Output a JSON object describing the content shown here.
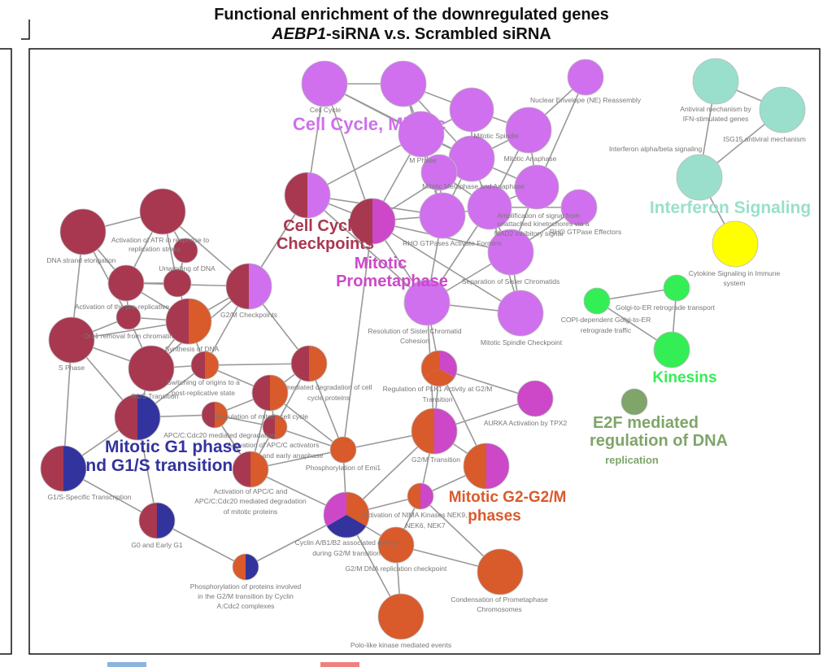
{
  "title": {
    "line1": "Functional enrichment of the downregulated genes",
    "line2_gene": "AEBP1",
    "line2_rest": "-siRNA v.s. Scrambled siRNA"
  },
  "colors": {
    "cell_cycle_mitotic": "#d070ee",
    "cell_cycle_checkpoints": "#a83850",
    "mitotic_prometaphase": "#cc48c8",
    "g1s": "#33339e",
    "g2m": "#d95a2b",
    "interferon": "#99dfcc",
    "cytokine": "#ffff00",
    "kinesins": "#33ee55",
    "e2f": "#7fa56a",
    "edge": "#999999",
    "legend_blue": "#8ab4dc",
    "legend_red": "#f08080"
  },
  "groups": [
    {
      "text": "Cell Cycle, Mitotic",
      "color": "#d070ee"
    },
    {
      "text": "Cell Cycle",
      "color": "#a83850"
    },
    {
      "text": "Checkpoints",
      "color": "#a83850"
    },
    {
      "text": "Mitotic",
      "color": "#cc48c8"
    },
    {
      "text": "Prometaphase",
      "color": "#cc48c8"
    },
    {
      "text": "Interferon Signaling",
      "color": "#99dfcc"
    },
    {
      "text": "Kinesins",
      "color": "#33ee55"
    },
    {
      "text": "E2F mediated",
      "color": "#7fa56a"
    },
    {
      "text": "regulation of DNA",
      "color": "#7fa56a"
    },
    {
      "text": "replication",
      "color": "#7fa56a"
    },
    {
      "text": "Mitotic G1 phase",
      "color": "#33339e"
    },
    {
      "text": "and G1/S transition",
      "color": "#33339e"
    },
    {
      "text": "Mitotic G2-G2/M",
      "color": "#d95a2b"
    },
    {
      "text": "phases",
      "color": "#d95a2b"
    }
  ],
  "nodes": [
    {
      "id": "n1",
      "c": [
        "cell_cycle_mitotic"
      ]
    },
    {
      "id": "n2",
      "c": [
        "cell_cycle_mitotic"
      ]
    },
    {
      "id": "n3",
      "c": [
        "cell_cycle_mitotic"
      ]
    },
    {
      "id": "n4",
      "c": [
        "cell_cycle_mitotic"
      ]
    },
    {
      "id": "n5",
      "c": [
        "cell_cycle_mitotic"
      ]
    },
    {
      "id": "n6",
      "c": [
        "cell_cycle_mitotic"
      ]
    },
    {
      "id": "n7",
      "c": [
        "cell_cycle_mitotic"
      ]
    },
    {
      "id": "n8",
      "c": [
        "cell_cycle_mitotic"
      ]
    },
    {
      "id": "n9",
      "c": [
        "cell_cycle_mitotic"
      ]
    },
    {
      "id": "n10",
      "c": [
        "cell_cycle_mitotic"
      ]
    },
    {
      "id": "n11",
      "c": [
        "cell_cycle_mitotic"
      ]
    },
    {
      "id": "n12",
      "c": [
        "cell_cycle_mitotic"
      ]
    },
    {
      "id": "n13",
      "c": [
        "cell_cycle_mitotic"
      ]
    },
    {
      "id": "n14",
      "c": [
        "cell_cycle_mitotic"
      ]
    },
    {
      "id": "n15",
      "c": [
        "cell_cycle_checkpoints",
        "cell_cycle_mitotic"
      ]
    },
    {
      "id": "n16",
      "c": [
        "cell_cycle_checkpoints",
        "mitotic_prometaphase"
      ]
    },
    {
      "id": "n17",
      "c": [
        "cell_cycle_mitotic"
      ]
    },
    {
      "id": "n18",
      "c": [
        "cell_cycle_mitotic"
      ]
    },
    {
      "id": "n19",
      "c": [
        "cell_cycle_mitotic"
      ]
    },
    {
      "id": "n20",
      "c": [
        "cell_cycle_checkpoints",
        "cell_cycle_mitotic"
      ]
    },
    {
      "id": "n21",
      "c": [
        "cell_cycle_checkpoints"
      ]
    },
    {
      "id": "n22",
      "c": [
        "cell_cycle_checkpoints"
      ]
    },
    {
      "id": "n23",
      "c": [
        "cell_cycle_checkpoints"
      ]
    },
    {
      "id": "n24",
      "c": [
        "cell_cycle_checkpoints"
      ]
    },
    {
      "id": "n25",
      "c": [
        "cell_cycle_checkpoints"
      ]
    },
    {
      "id": "n26",
      "c": [
        "cell_cycle_checkpoints"
      ]
    },
    {
      "id": "n27",
      "c": [
        "cell_cycle_checkpoints"
      ]
    },
    {
      "id": "n28",
      "c": [
        "cell_cycle_checkpoints",
        "g2m"
      ]
    },
    {
      "id": "n29",
      "c": [
        "cell_cycle_checkpoints"
      ]
    },
    {
      "id": "n30",
      "c": [
        "cell_cycle_checkpoints",
        "g2m"
      ]
    },
    {
      "id": "n31",
      "c": [
        "cell_cycle_checkpoints",
        "g1s"
      ]
    },
    {
      "id": "n32",
      "c": [
        "cell_cycle_checkpoints",
        "g1s"
      ]
    },
    {
      "id": "n33",
      "c": [
        "cell_cycle_checkpoints",
        "g1s"
      ]
    },
    {
      "id": "n34",
      "c": [
        "cell_cycle_checkpoints",
        "g2m"
      ]
    },
    {
      "id": "n35",
      "c": [
        "cell_cycle_checkpoints",
        "g2m"
      ]
    },
    {
      "id": "n36",
      "c": [
        "cell_cycle_checkpoints",
        "g2m"
      ]
    },
    {
      "id": "n37",
      "c": [
        "cell_cycle_checkpoints",
        "g2m"
      ]
    },
    {
      "id": "n38",
      "c": [
        "cell_cycle_checkpoints",
        "g2m"
      ]
    },
    {
      "id": "n39",
      "c": [
        "g2m"
      ]
    },
    {
      "id": "n40",
      "c": [
        "g2m",
        "g1s"
      ]
    },
    {
      "id": "n41",
      "c": [
        "g2m",
        "g1s",
        "mitotic_prometaphase"
      ]
    },
    {
      "id": "n42",
      "c": [
        "mitotic_prometaphase",
        "g2m",
        "g2m"
      ]
    },
    {
      "id": "n43",
      "c": [
        "mitotic_prometaphase"
      ]
    },
    {
      "id": "n44",
      "c": [
        "g2m",
        "mitotic_prometaphase"
      ]
    },
    {
      "id": "n45",
      "c": [
        "g2m",
        "mitotic_prometaphase"
      ]
    },
    {
      "id": "n46",
      "c": [
        "g2m",
        "mitotic_prometaphase"
      ]
    },
    {
      "id": "n47",
      "c": [
        "g2m"
      ]
    },
    {
      "id": "n48",
      "c": [
        "g2m"
      ]
    },
    {
      "id": "n49",
      "c": [
        "g2m"
      ]
    },
    {
      "id": "n50",
      "c": [
        "interferon"
      ]
    },
    {
      "id": "n51",
      "c": [
        "interferon"
      ]
    },
    {
      "id": "n52",
      "c": [
        "interferon"
      ]
    },
    {
      "id": "n53",
      "c": [
        "interferon"
      ]
    },
    {
      "id": "n54",
      "c": [
        "cytokine"
      ]
    },
    {
      "id": "n55",
      "c": [
        "kinesins"
      ]
    },
    {
      "id": "n56",
      "c": [
        "kinesins"
      ]
    },
    {
      "id": "n57",
      "c": [
        "kinesins"
      ]
    },
    {
      "id": "n58",
      "c": [
        "e2f"
      ]
    }
  ],
  "labels": [
    "Cell Cycle",
    "Nuclear Envelope (NE) Reassembly",
    "Mitotic Spindle",
    "M Phase",
    "Mitotic Anaphase",
    "Mitotic Metaphase and Anaphase",
    "Amplification of signal from",
    "unattached kinetochores via a",
    "MAD2 inhibitory signal",
    "RHO GTPase Effectors",
    "RHO GTPases Activate Formins",
    "Separation of Sister Chromatids",
    "Resolution of Sister Chromatid",
    "Cohesion",
    "Mitotic Spindle Checkpoint",
    "Antiviral mechanism by",
    "IFN-stimulated genes",
    "ISG15 antiviral mechanism",
    "Interferon alpha/beta signaling",
    "Cytokine Signaling in Immune",
    "system",
    "Golgi-to-ER retrograde transport",
    "COPI-dependent Golgi-to-ER",
    "retrograde traffic",
    "Activation of ATR in response to",
    "replication stress",
    "DNA strand elongation",
    "Unwinding of DNA",
    "Activation of the pre-replicative",
    "G2/M Checkpoints",
    "Orc1 removal from chromatin",
    "S Phase",
    "Synthesis of DNA",
    "Switching of origins to a",
    "post-replicative state",
    "G1/S Transition",
    "Regulation of mitotic cell cycle",
    "APC/C:Cdc20 mediated degradation",
    "Activation of APC/C activators",
    "and early anaphase",
    "Phosphorylation of Emi1",
    "Activation of APC/C and",
    "APC/C:Cdc20 mediated degradation",
    "of mitotic proteins",
    "G1/S-Specific Transcription",
    "G0 and Early G1",
    "Phosphorylation of proteins involved",
    "in the G2/M transition by Cyclin",
    "A:Cdc2 complexes",
    "Cyclin A/B1/B2 associated events",
    "during G2/M transition",
    "Activation of NIMA Kinases NEK9,",
    "NEK6, NEK7",
    "G2/M DNA replication checkpoint",
    "Regulation of PLK1 Activity at G2/M",
    "Transition",
    "AURKA Activation by TPX2",
    "G2/M Transition",
    "Condensation of Prometaphase",
    "Chromosomes",
    "Polo-like kinase mediated events",
    "mediated degradation of cell",
    "cycle proteins"
  ]
}
